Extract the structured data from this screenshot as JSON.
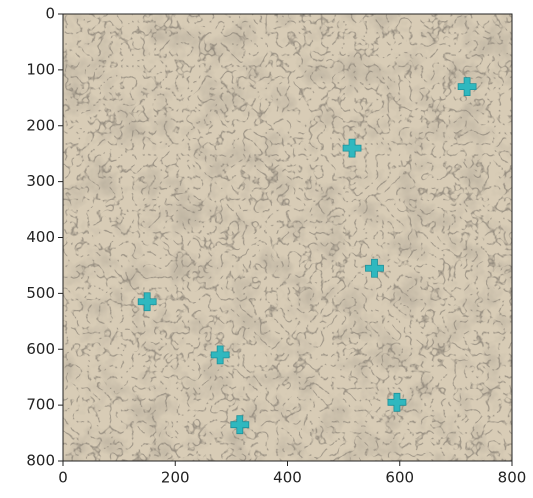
{
  "chart_data": {
    "type": "scatter",
    "x": [
      720,
      515,
      555,
      150,
      280,
      595,
      315
    ],
    "values": [
      130,
      240,
      455,
      515,
      610,
      695,
      735
    ],
    "color": "#2fb8bf",
    "xlim": [
      0,
      800
    ],
    "ylim": [
      800,
      0
    ],
    "xticks": [
      0,
      200,
      400,
      600,
      800
    ],
    "yticks": [
      0,
      100,
      200,
      300,
      400,
      500,
      600,
      700,
      800
    ]
  }
}
